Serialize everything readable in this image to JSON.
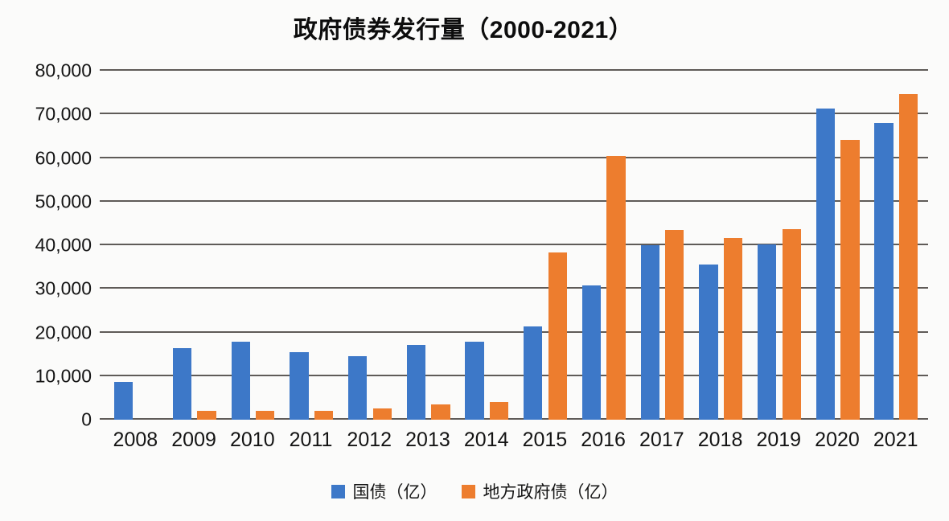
{
  "title": "政府债券发行量（2000-2021）",
  "colors": {
    "treasury": "#3D78C8",
    "local": "#ED7D2E",
    "gridline": "#5F5B58",
    "background": "#FBFBFA",
    "text": "#141414"
  },
  "chart_data": {
    "type": "bar",
    "title": "政府债券发行量（2000-2021）",
    "categories": [
      "2008",
      "2009",
      "2010",
      "2011",
      "2012",
      "2013",
      "2014",
      "2015",
      "2016",
      "2017",
      "2018",
      "2019",
      "2020",
      "2021"
    ],
    "series": [
      {
        "name": "国债（亿）",
        "color_key": "treasury",
        "values": [
          8600,
          16400,
          17900,
          15400,
          14600,
          17200,
          17900,
          21300,
          30800,
          40000,
          35600,
          40100,
          71300,
          68100
        ]
      },
      {
        "name": "地方政府债（亿）",
        "color_key": "local",
        "values": [
          0,
          2000,
          2000,
          2000,
          2500,
          3500,
          4000,
          38400,
          60500,
          43500,
          41700,
          43600,
          64200,
          74700
        ]
      }
    ],
    "xlabel": "",
    "ylabel": "",
    "ylim": [
      0,
      80000
    ],
    "ytick_step": 10000,
    "ytick_labels": [
      "0",
      "10,000",
      "20,000",
      "30,000",
      "40,000",
      "50,000",
      "60,000",
      "70,000",
      "80,000"
    ],
    "grid": true,
    "legend_position": "bottom"
  }
}
